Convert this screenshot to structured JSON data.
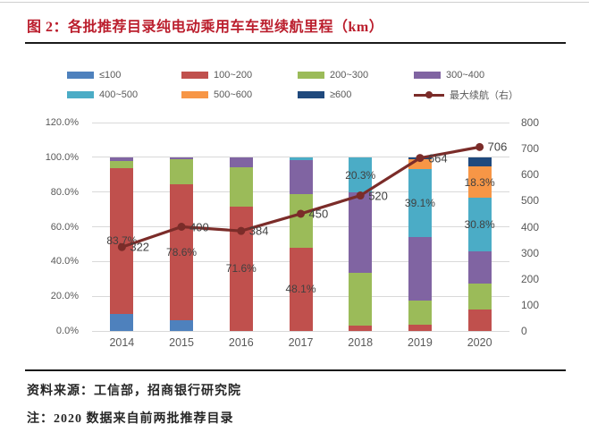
{
  "title": "图 2：各批推荐目录纯电动乘用车车型续航里程（km）",
  "source_text": "资料来源：工信部，招商银行研究院",
  "note_text": "注：2020 数据来自前两批推荐目录",
  "colors": {
    "title_red": "#BB1E2D",
    "rule_dark": "#1a1a1a",
    "gridline": "#d9d9d9",
    "axis_text": "#595959",
    "label_text": "#404040",
    "line_maroon": "#7B2C29"
  },
  "chart_data": {
    "type": "bar",
    "stacked": true,
    "grid": true,
    "legend_position": "top",
    "categories": [
      "2014",
      "2015",
      "2016",
      "2017",
      "2018",
      "2019",
      "2020"
    ],
    "series": [
      {
        "name": "≤100",
        "color": "#4E81BD",
        "values": [
          10.0,
          6.0,
          0,
          0,
          0,
          0,
          0
        ]
      },
      {
        "name": "100~200",
        "color": "#C0504D",
        "values": [
          83.7,
          78.6,
          71.6,
          48.1,
          3.0,
          3.5,
          12.4
        ]
      },
      {
        "name": "200~300",
        "color": "#9BBB59",
        "values": [
          4.0,
          14.4,
          22.4,
          30.9,
          30.7,
          14.1,
          15.1
        ]
      },
      {
        "name": "300~400",
        "color": "#8064A2",
        "values": [
          2.3,
          1.0,
          6.0,
          19.5,
          46.0,
          36.3,
          18.2
        ]
      },
      {
        "name": "400~500",
        "color": "#4BACC6",
        "values": [
          0,
          0,
          0,
          1.5,
          20.3,
          39.1,
          30.8
        ]
      },
      {
        "name": "500~600",
        "color": "#F79646",
        "values": [
          0,
          0,
          0,
          0,
          0,
          6.0,
          18.3
        ]
      },
      {
        "name": "≥600",
        "color": "#1F497D",
        "values": [
          0,
          0,
          0,
          0,
          0,
          1.0,
          5.2
        ]
      }
    ],
    "line_series": {
      "name": "最大续航（右）",
      "color": "#7B2C29",
      "axis": "right",
      "values": [
        322,
        400,
        384,
        450,
        520,
        664,
        706
      ],
      "labels": [
        "322",
        "400",
        "384",
        "450",
        "520",
        "664",
        "706"
      ]
    },
    "bar_labels": [
      {
        "cat": 0,
        "series": "100~200",
        "text": "83.7%"
      },
      {
        "cat": 1,
        "series": "100~200",
        "text": "78.6%"
      },
      {
        "cat": 2,
        "series": "100~200",
        "text": "71.6%"
      },
      {
        "cat": 3,
        "series": "100~200",
        "text": "48.1%"
      },
      {
        "cat": 4,
        "series": "400~500",
        "text": "20.3%"
      },
      {
        "cat": 5,
        "series": "400~500",
        "text": "39.1%"
      },
      {
        "cat": 6,
        "series": "400~500",
        "text": "30.8%"
      },
      {
        "cat": 6,
        "series": "500~600",
        "text": "18.3%"
      }
    ],
    "left_axis": {
      "min": 0,
      "max": 120,
      "labels": [
        "0.0%",
        "20.0%",
        "40.0%",
        "60.0%",
        "80.0%",
        "100.0%",
        "120.0%"
      ]
    },
    "right_axis": {
      "min": 0,
      "max": 800,
      "labels": [
        "0",
        "100",
        "200",
        "300",
        "400",
        "500",
        "600",
        "700",
        "800"
      ]
    },
    "legend_rows": [
      [
        {
          "label": "≤100",
          "color": "#4E81BD",
          "type": "swatch"
        },
        {
          "label": "100~200",
          "color": "#C0504D",
          "type": "swatch"
        },
        {
          "label": "200~300",
          "color": "#9BBB59",
          "type": "swatch"
        },
        {
          "label": "300~400",
          "color": "#8064A2",
          "type": "swatch"
        }
      ],
      [
        {
          "label": "400~500",
          "color": "#4BACC6",
          "type": "swatch"
        },
        {
          "label": "500~600",
          "color": "#F79646",
          "type": "swatch"
        },
        {
          "label": "≥600",
          "color": "#1F497D",
          "type": "swatch"
        },
        {
          "label": "最大续航（右）",
          "color": "#7B2C29",
          "type": "line"
        }
      ]
    ]
  }
}
